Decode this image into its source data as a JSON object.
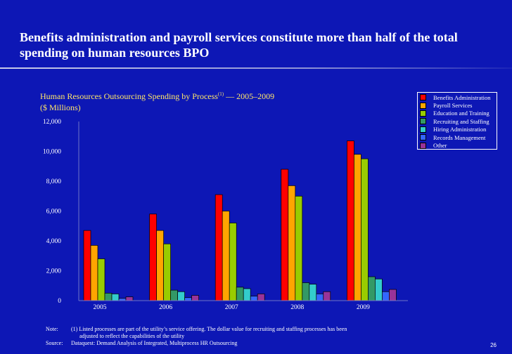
{
  "slide": {
    "title": "Benefits administration and payroll services constitute more than half of the total spending on human resources BPO",
    "page_number": "26"
  },
  "chart_data": {
    "type": "bar",
    "title": "Human Resources Outsourcing Spending by Process",
    "title_superscript": "(1)",
    "title_period": " — 2005–2009",
    "subtitle": "($ Millions)",
    "categories": [
      "2005",
      "2006",
      "2007",
      "2008",
      "2009"
    ],
    "ylim": [
      0,
      12000
    ],
    "yticks": [
      "0",
      "2,000",
      "4,000",
      "6,000",
      "8,000",
      "10,000",
      "12,000"
    ],
    "ytick_values": [
      0,
      2000,
      4000,
      6000,
      8000,
      10000,
      12000
    ],
    "grid": false,
    "legend_position": "top-right",
    "series": [
      {
        "name": "Benefits Administration",
        "color": "#ff0000",
        "values": [
          4700,
          5800,
          7100,
          8800,
          10700
        ]
      },
      {
        "name": "Payroll Services",
        "color": "#ffa500",
        "values": [
          3700,
          4700,
          6000,
          7700,
          9800
        ]
      },
      {
        "name": "Education and Training",
        "color": "#99cc00",
        "values": [
          2800,
          3800,
          5200,
          7000,
          9500
        ]
      },
      {
        "name": "Recruiting and Staffing",
        "color": "#339966",
        "values": [
          500,
          700,
          900,
          1200,
          1600
        ]
      },
      {
        "name": "Hiring Administration",
        "color": "#33cccc",
        "values": [
          450,
          600,
          800,
          1100,
          1450
        ]
      },
      {
        "name": "Records Management",
        "color": "#3366ff",
        "values": [
          150,
          200,
          300,
          450,
          600
        ]
      },
      {
        "name": "Other",
        "color": "#993399",
        "values": [
          250,
          350,
          450,
          600,
          750
        ]
      }
    ]
  },
  "notes": {
    "note_label": "Note:",
    "note_line1": "(1) Listed processes are part of the utility’s service offering. The dollar value for recruiting and staffing processes has been",
    "note_line2": "adjusted to reflect the capabilities of the utility",
    "source_label": "Source:",
    "source_text": "Dataquest: Demand Analysis of Integrated, Multiprocess HR Outsourcing"
  }
}
